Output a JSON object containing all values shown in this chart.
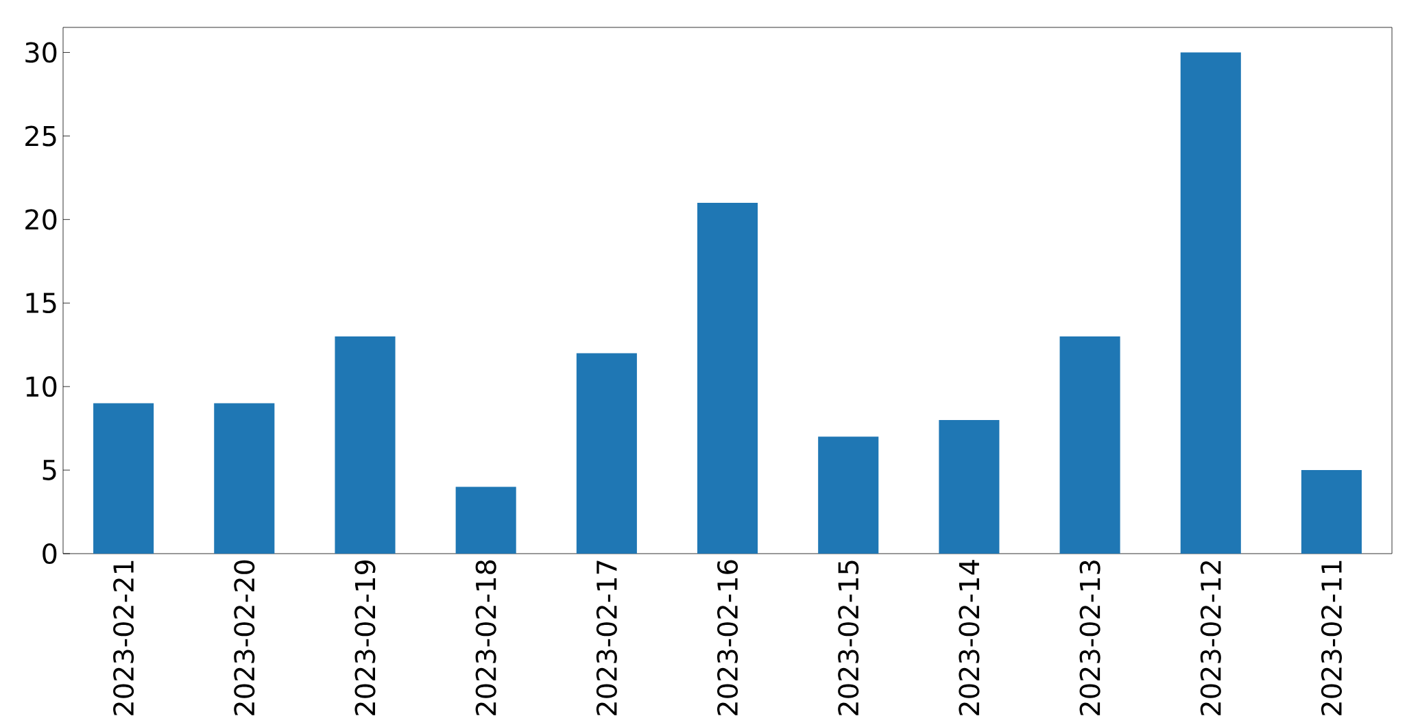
{
  "chart_data": {
    "type": "bar",
    "categories": [
      "2023-02-21",
      "2023-02-20",
      "2023-02-19",
      "2023-02-18",
      "2023-02-17",
      "2023-02-16",
      "2023-02-15",
      "2023-02-14",
      "2023-02-13",
      "2023-02-12",
      "2023-02-11"
    ],
    "values": [
      9,
      9,
      13,
      4,
      12,
      21,
      7,
      8,
      13,
      30,
      5
    ],
    "color": "#1f77b4",
    "ylim": [
      0,
      31.5
    ],
    "yticks": [
      0,
      5,
      10,
      15,
      20,
      25,
      30
    ]
  }
}
